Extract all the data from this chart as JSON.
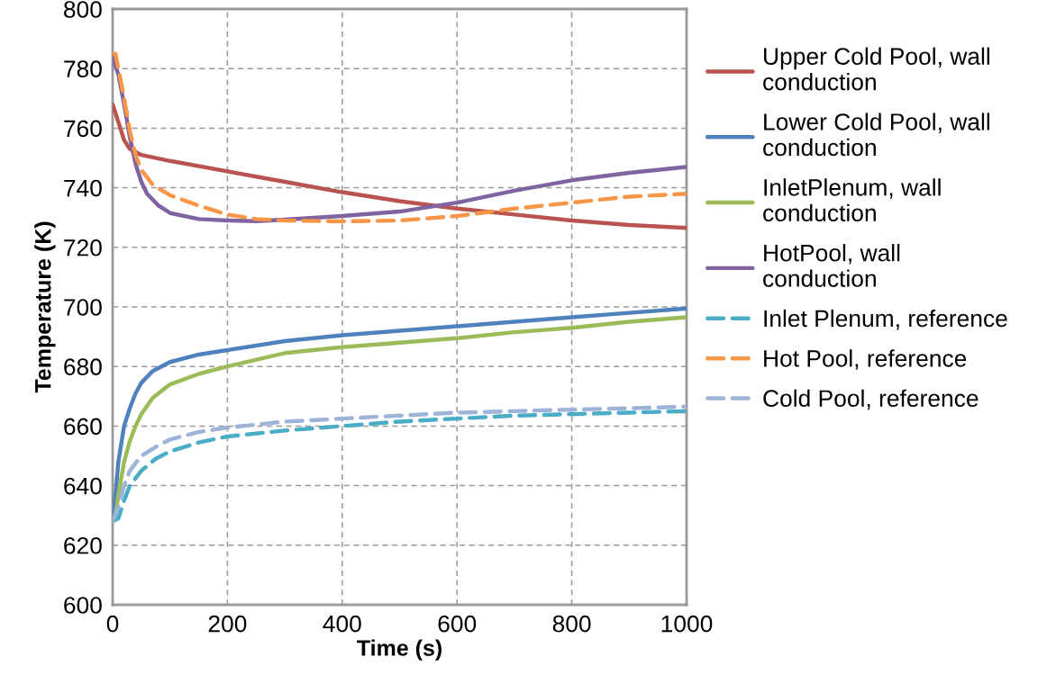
{
  "chart_data": {
    "type": "line",
    "xlabel": "Time (s)",
    "ylabel": "Temperature (K)",
    "xlim": [
      0,
      1000
    ],
    "xticks": [
      0,
      200,
      400,
      600,
      800,
      1000
    ],
    "ylim": [
      600,
      800
    ],
    "yticks": [
      600,
      620,
      640,
      660,
      680,
      700,
      720,
      740,
      760,
      780,
      800
    ],
    "grid": true,
    "legend": "right",
    "marker": "none",
    "series": [
      {
        "name": "Upper Cold Pool, wall\nconduction",
        "color": "#b9534f",
        "line_style": "solid",
        "x": [
          0,
          10,
          20,
          30,
          50,
          100,
          200,
          300,
          400,
          500,
          600,
          700,
          800,
          900,
          1000
        ],
        "values": [
          768,
          762,
          756,
          753,
          751,
          749,
          745.5,
          742,
          738.5,
          735.5,
          733,
          731,
          729,
          727.5,
          726.5
        ]
      },
      {
        "name": "Lower Cold Pool, wall\nconduction",
        "color": "#4f81bd",
        "line_style": "solid",
        "x": [
          0,
          5,
          10,
          20,
          30,
          40,
          50,
          70,
          100,
          150,
          200,
          300,
          400,
          500,
          600,
          700,
          800,
          900,
          1000
        ],
        "values": [
          628,
          637,
          648,
          660,
          666,
          671,
          674.5,
          678.5,
          681.5,
          684,
          685.5,
          688.5,
          690.5,
          692,
          693.5,
          695,
          696.5,
          698,
          699.5
        ]
      },
      {
        "name": "InletPlenum, wall\nconduction",
        "color": "#9bbb59",
        "line_style": "solid",
        "x": [
          0,
          5,
          10,
          20,
          30,
          40,
          50,
          70,
          100,
          150,
          200,
          300,
          400,
          500,
          600,
          700,
          800,
          900,
          1000
        ],
        "values": [
          628,
          630,
          637,
          648,
          655,
          660,
          664,
          669.5,
          674,
          677.5,
          680,
          684.5,
          686.5,
          688,
          689.5,
          691.5,
          693,
          695,
          696.5
        ]
      },
      {
        "name": "HotPool, wall\nconduction",
        "color": "#8064a2",
        "line_style": "solid",
        "x": [
          0,
          10,
          20,
          30,
          40,
          50,
          60,
          80,
          100,
          150,
          200,
          250,
          300,
          400,
          500,
          600,
          700,
          800,
          900,
          1000
        ],
        "values": [
          784,
          778,
          768,
          757,
          748,
          742,
          738,
          734,
          731.5,
          729.5,
          729,
          728.8,
          729.3,
          730.5,
          732,
          735,
          739,
          742.5,
          745,
          747
        ]
      },
      {
        "name": "Inlet Plenum, reference",
        "color": "#4bacc6",
        "line_style": "dashed",
        "x": [
          0,
          10,
          20,
          30,
          50,
          75,
          100,
          150,
          200,
          300,
          400,
          500,
          600,
          700,
          800,
          900,
          1000
        ],
        "values": [
          628,
          629,
          635,
          640,
          645,
          649,
          651.5,
          654.5,
          656.5,
          658.5,
          660,
          661.5,
          662.5,
          663.5,
          664,
          664.5,
          665
        ]
      },
      {
        "name": "Hot Pool, reference",
        "color": "#f79646",
        "line_style": "dashed",
        "x": [
          0,
          5,
          10,
          20,
          30,
          40,
          50,
          70,
          100,
          150,
          200,
          250,
          300,
          400,
          500,
          600,
          700,
          800,
          900,
          1000
        ],
        "values": [
          785,
          785,
          780,
          770,
          759,
          751,
          746,
          741,
          737.5,
          734,
          731,
          729.5,
          729,
          728.7,
          729,
          730.5,
          733,
          735,
          737,
          738
        ]
      },
      {
        "name": "Cold Pool, reference",
        "color": "#9db4d8",
        "line_style": "dashed",
        "x": [
          0,
          10,
          20,
          30,
          50,
          75,
          100,
          150,
          200,
          300,
          400,
          500,
          600,
          700,
          800,
          900,
          1000
        ],
        "values": [
          628,
          633,
          640,
          645,
          650,
          653,
          655.5,
          658,
          659.5,
          661.5,
          662.5,
          663.5,
          664.5,
          665,
          665.5,
          666,
          666.5
        ]
      }
    ]
  }
}
